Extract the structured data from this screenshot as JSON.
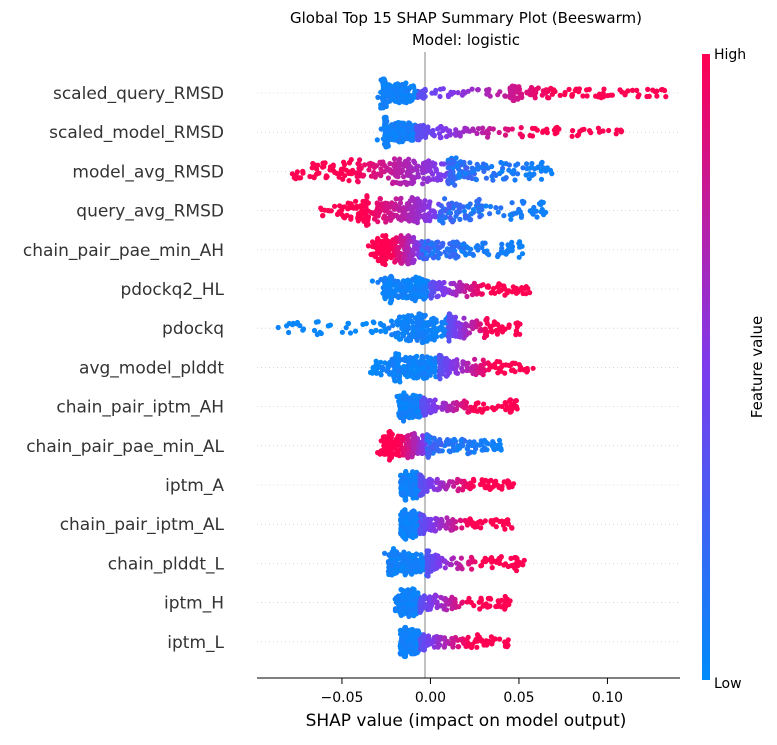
{
  "chart_data": {
    "type": "scatter",
    "subtype": "beeswarm",
    "title": "Global Top 15 SHAP Summary Plot (Beeswarm)",
    "subtitle": "Model: logistic",
    "xlabel": "SHAP value (impact on model output)",
    "xlim": [
      -0.098,
      0.141
    ],
    "xticks": [
      -0.05,
      0.0,
      0.05,
      0.1
    ],
    "xtick_labels": [
      "−0.05",
      "0.00",
      "0.05",
      "0.10"
    ],
    "zero_line": 0,
    "grid": false,
    "colorbar": {
      "label": "Feature value",
      "high_label": "High",
      "low_label": "Low",
      "low_color": "#008bfb",
      "high_color": "#ff0052",
      "mid_color": "#7c3aed",
      "placement": "right"
    },
    "features": [
      {
        "name": "scaled_query_RMSD",
        "min": -0.027,
        "max": 0.134,
        "core": [
          -0.026,
          -0.008
        ],
        "high_side": "positive",
        "gap_after": 0.045,
        "outliers": [
          0.133,
          0.127,
          0.048
        ]
      },
      {
        "name": "scaled_model_RMSD",
        "min": -0.026,
        "max": 0.108,
        "core": [
          -0.025,
          -0.008
        ],
        "high_side": "positive",
        "gap_after": null,
        "outliers": [
          0.108
        ]
      },
      {
        "name": "model_avg_RMSD",
        "min": -0.078,
        "max": 0.069,
        "core": [
          -0.04,
          0.01
        ],
        "high_side": "negative",
        "gap_after": null,
        "outliers": [
          -0.078,
          -0.063
        ]
      },
      {
        "name": "query_avg_RMSD",
        "min": -0.062,
        "max": 0.066,
        "core": [
          -0.035,
          0.005
        ],
        "high_side": "negative",
        "gap_after": null,
        "outliers": [
          -0.062,
          -0.056
        ]
      },
      {
        "name": "chain_pair_pae_min_AH",
        "min": -0.033,
        "max": 0.052,
        "core": [
          -0.025,
          -0.005
        ],
        "high_side": "negative",
        "gap_after": null,
        "outliers": [
          0.052
        ]
      },
      {
        "name": "pdockq2_HL",
        "min": -0.027,
        "max": 0.056,
        "core": [
          -0.022,
          0.0
        ],
        "high_side": "positive",
        "gap_after": null,
        "outliers": [
          0.056
        ]
      },
      {
        "name": "pdockq",
        "min": -0.086,
        "max": 0.051,
        "core": [
          -0.015,
          0.01
        ],
        "high_side": "positive",
        "gap_after": null,
        "outliers": [
          -0.086,
          -0.078
        ]
      },
      {
        "name": "avg_model_plddt",
        "min": -0.034,
        "max": 0.058,
        "core": [
          -0.018,
          0.005
        ],
        "high_side": "positive",
        "gap_after": null,
        "outliers": [
          0.058
        ]
      },
      {
        "name": "chain_pair_iptm_AH",
        "min": -0.018,
        "max": 0.049,
        "core": [
          -0.015,
          -0.005
        ],
        "high_side": "positive",
        "gap_after": null,
        "outliers": [
          0.049
        ]
      },
      {
        "name": "chain_pair_pae_min_AL",
        "min": -0.028,
        "max": 0.04,
        "core": [
          -0.022,
          -0.002
        ],
        "high_side": "negative",
        "gap_after": null,
        "outliers": [
          0.04
        ]
      },
      {
        "name": "iptm_A",
        "min": -0.017,
        "max": 0.047,
        "core": [
          -0.014,
          -0.006
        ],
        "high_side": "positive",
        "gap_after": null,
        "outliers": [
          0.047
        ]
      },
      {
        "name": "chain_pair_iptm_AL",
        "min": -0.017,
        "max": 0.046,
        "core": [
          -0.014,
          -0.006
        ],
        "high_side": "positive",
        "gap_after": null,
        "outliers": [
          0.046
        ]
      },
      {
        "name": "chain_plddt_L",
        "min": -0.024,
        "max": 0.053,
        "core": [
          -0.02,
          -0.002
        ],
        "high_side": "positive",
        "gap_after": null,
        "outliers": [
          0.053
        ]
      },
      {
        "name": "iptm_H",
        "min": -0.02,
        "max": 0.045,
        "core": [
          -0.015,
          -0.006
        ],
        "high_side": "positive",
        "gap_after": null,
        "outliers": [
          0.045
        ]
      },
      {
        "name": "iptm_L",
        "min": -0.017,
        "max": 0.044,
        "core": [
          -0.014,
          -0.006
        ],
        "high_side": "positive",
        "gap_after": null,
        "outliers": [
          0.044
        ]
      }
    ]
  }
}
